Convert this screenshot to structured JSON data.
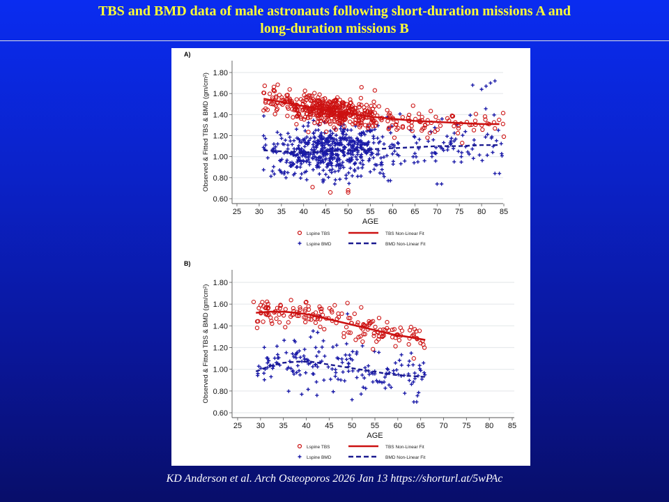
{
  "slide": {
    "title_line1": "TBS and BMD data of male astronauts following short-duration missions A and",
    "title_line2": "long-duration missions B",
    "citation": "KD Anderson et al. Arch Osteoporos 2026 Jan 13 https://shorturl.at/5wPAc"
  },
  "colors": {
    "background": "#0b22c8",
    "title": "#ffff33",
    "tbs": "#cc1111",
    "tbs_fit": "#cc1111",
    "bmd": "#1a1aa8",
    "bmd_fit": "#1a1a90"
  },
  "chart_data": [
    {
      "type": "scatter",
      "panel_label": "A)",
      "title": "",
      "xlabel": "AGE",
      "ylabel": "Observed & Fitted TBS & BMD (gm/cm²)",
      "xlim": [
        24,
        86
      ],
      "ylim": [
        0.58,
        1.84
      ],
      "xticks": [
        "25",
        "30",
        "35",
        "40",
        "45",
        "50",
        "55",
        "60",
        "65",
        "70",
        "75",
        "80",
        "85"
      ],
      "yticks": [
        "0.60",
        "0.80",
        "1.00",
        "1.20",
        "1.40",
        "1.60",
        "1.80"
      ],
      "grid": true,
      "legend_position": "bottom",
      "legend": [
        {
          "label": "Lspine TBS",
          "marker": "circle"
        },
        {
          "label": "TBS Non-Linear Fit",
          "marker": "solid-line"
        },
        {
          "label": "Lspine BMD",
          "marker": "plus"
        },
        {
          "label": "BMD Non-Linear Fit",
          "marker": "dashed-line"
        }
      ],
      "series": [
        {
          "name": "TBS Non-Linear Fit",
          "kind": "line",
          "x": [
            31,
            35,
            40,
            45,
            50,
            55,
            60,
            65,
            70,
            75,
            80,
            84
          ],
          "y": [
            1.55,
            1.52,
            1.48,
            1.44,
            1.41,
            1.38,
            1.36,
            1.34,
            1.33,
            1.32,
            1.31,
            1.31
          ]
        },
        {
          "name": "BMD Non-Linear Fit",
          "kind": "line",
          "x": [
            31,
            35,
            40,
            45,
            50,
            55,
            60,
            65,
            70,
            75,
            80,
            84
          ],
          "y": [
            1.06,
            1.05,
            1.04,
            1.05,
            1.06,
            1.07,
            1.08,
            1.09,
            1.1,
            1.1,
            1.11,
            1.11
          ]
        },
        {
          "name": "Lspine TBS",
          "kind": "scatter",
          "generated": {
            "n": 520,
            "x_range": [
              31,
              85
            ],
            "fit": "TBS Non-Linear Fit",
            "sd": 0.07
          },
          "outliers": [
            [
              42,
              0.71
            ],
            [
              46,
              0.66
            ],
            [
              50,
              0.68
            ],
            [
              50,
              0.66
            ],
            [
              53,
              1.66
            ],
            [
              56,
              1.63
            ],
            [
              85,
              1.19
            ]
          ]
        },
        {
          "name": "Lspine BMD",
          "kind": "scatter",
          "generated": {
            "n": 620,
            "x_range": [
              31,
              85
            ],
            "fit": "BMD Non-Linear Fit",
            "sd": 0.12
          },
          "outliers": [
            [
              82,
              1.7
            ],
            [
              83,
              1.72
            ],
            [
              80,
              1.64
            ],
            [
              81,
              1.67
            ],
            [
              78,
              1.68
            ],
            [
              47,
              0.74
            ],
            [
              70,
              0.74
            ],
            [
              71,
              0.74
            ],
            [
              84,
              0.84
            ],
            [
              83,
              0.84
            ]
          ]
        }
      ]
    },
    {
      "type": "scatter",
      "panel_label": "B)",
      "title": "",
      "xlabel": "AGE",
      "ylabel": "Observed & Fitted TBS & BMD (gm/cm²)",
      "xlim": [
        24,
        86
      ],
      "ylim": [
        0.58,
        1.84
      ],
      "xticks": [
        "25",
        "30",
        "35",
        "40",
        "45",
        "50",
        "55",
        "60",
        "65",
        "70",
        "75",
        "80",
        "85"
      ],
      "yticks": [
        "0.60",
        "0.80",
        "1.00",
        "1.20",
        "1.40",
        "1.60",
        "1.80"
      ],
      "grid": true,
      "legend_position": "bottom",
      "legend": [
        {
          "label": "Lspine TBS",
          "marker": "circle"
        },
        {
          "label": "TBS Non-Linear Fit",
          "marker": "solid-line"
        },
        {
          "label": "Lspine BMD",
          "marker": "plus"
        },
        {
          "label": "BMD Non-Linear Fit",
          "marker": "dashed-line"
        }
      ],
      "series": [
        {
          "name": "TBS Non-Linear Fit",
          "kind": "line",
          "x": [
            29,
            32,
            35,
            38,
            41,
            44,
            47,
            50,
            53,
            56,
            59,
            62,
            66
          ],
          "y": [
            1.52,
            1.53,
            1.53,
            1.52,
            1.5,
            1.47,
            1.44,
            1.41,
            1.38,
            1.35,
            1.32,
            1.3,
            1.27
          ]
        },
        {
          "name": "BMD Non-Linear Fit",
          "kind": "line",
          "x": [
            29,
            32,
            35,
            38,
            41,
            44,
            47,
            50,
            53,
            56,
            59,
            62,
            66
          ],
          "y": [
            0.98,
            1.03,
            1.06,
            1.07,
            1.07,
            1.05,
            1.03,
            1.01,
            0.99,
            0.97,
            0.95,
            0.94,
            0.93
          ]
        },
        {
          "name": "Lspine TBS",
          "kind": "scatter",
          "generated": {
            "n": 170,
            "x_range": [
              29,
              66
            ],
            "fit": "TBS Non-Linear Fit",
            "sd": 0.06
          },
          "outliers": [
            [
              28.5,
              1.62
            ],
            [
              40,
              1.62
            ],
            [
              49,
              1.61
            ],
            [
              52,
              1.57
            ],
            [
              63.5,
              1.1
            ]
          ]
        },
        {
          "name": "Lspine BMD",
          "kind": "scatter",
          "generated": {
            "n": 180,
            "x_range": [
              29,
              66
            ],
            "fit": "BMD Non-Linear Fit",
            "sd": 0.1
          },
          "outliers": [
            [
              39,
              0.77
            ],
            [
              50,
              0.72
            ],
            [
              63.5,
              0.7
            ],
            [
              43,
              1.49
            ],
            [
              49,
              1.51
            ]
          ]
        }
      ]
    }
  ]
}
